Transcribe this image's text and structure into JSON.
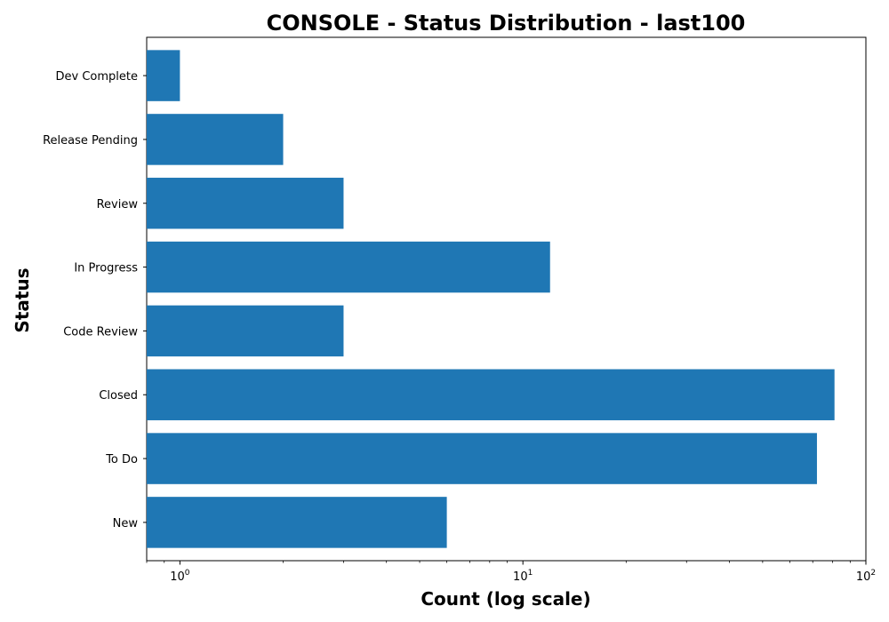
{
  "chart_data": {
    "type": "bar",
    "orientation": "horizontal",
    "title": "CONSOLE - Status Distribution - last100",
    "xlabel": "Count (log scale)",
    "ylabel": "Status",
    "x_scale": "log",
    "xlim": [
      0.8,
      100
    ],
    "x_ticks": [
      {
        "value": 1,
        "base": "10",
        "exp": "0"
      },
      {
        "value": 10,
        "base": "10",
        "exp": "1"
      },
      {
        "value": 100,
        "base": "10",
        "exp": "2"
      }
    ],
    "categories": [
      "New",
      "To Do",
      "Closed",
      "Code Review",
      "In Progress",
      "Review",
      "Release Pending",
      "Dev Complete"
    ],
    "values": [
      6,
      72,
      81,
      3,
      12,
      3,
      2,
      1
    ],
    "grid": false,
    "bar_color": "#1f77b4"
  }
}
